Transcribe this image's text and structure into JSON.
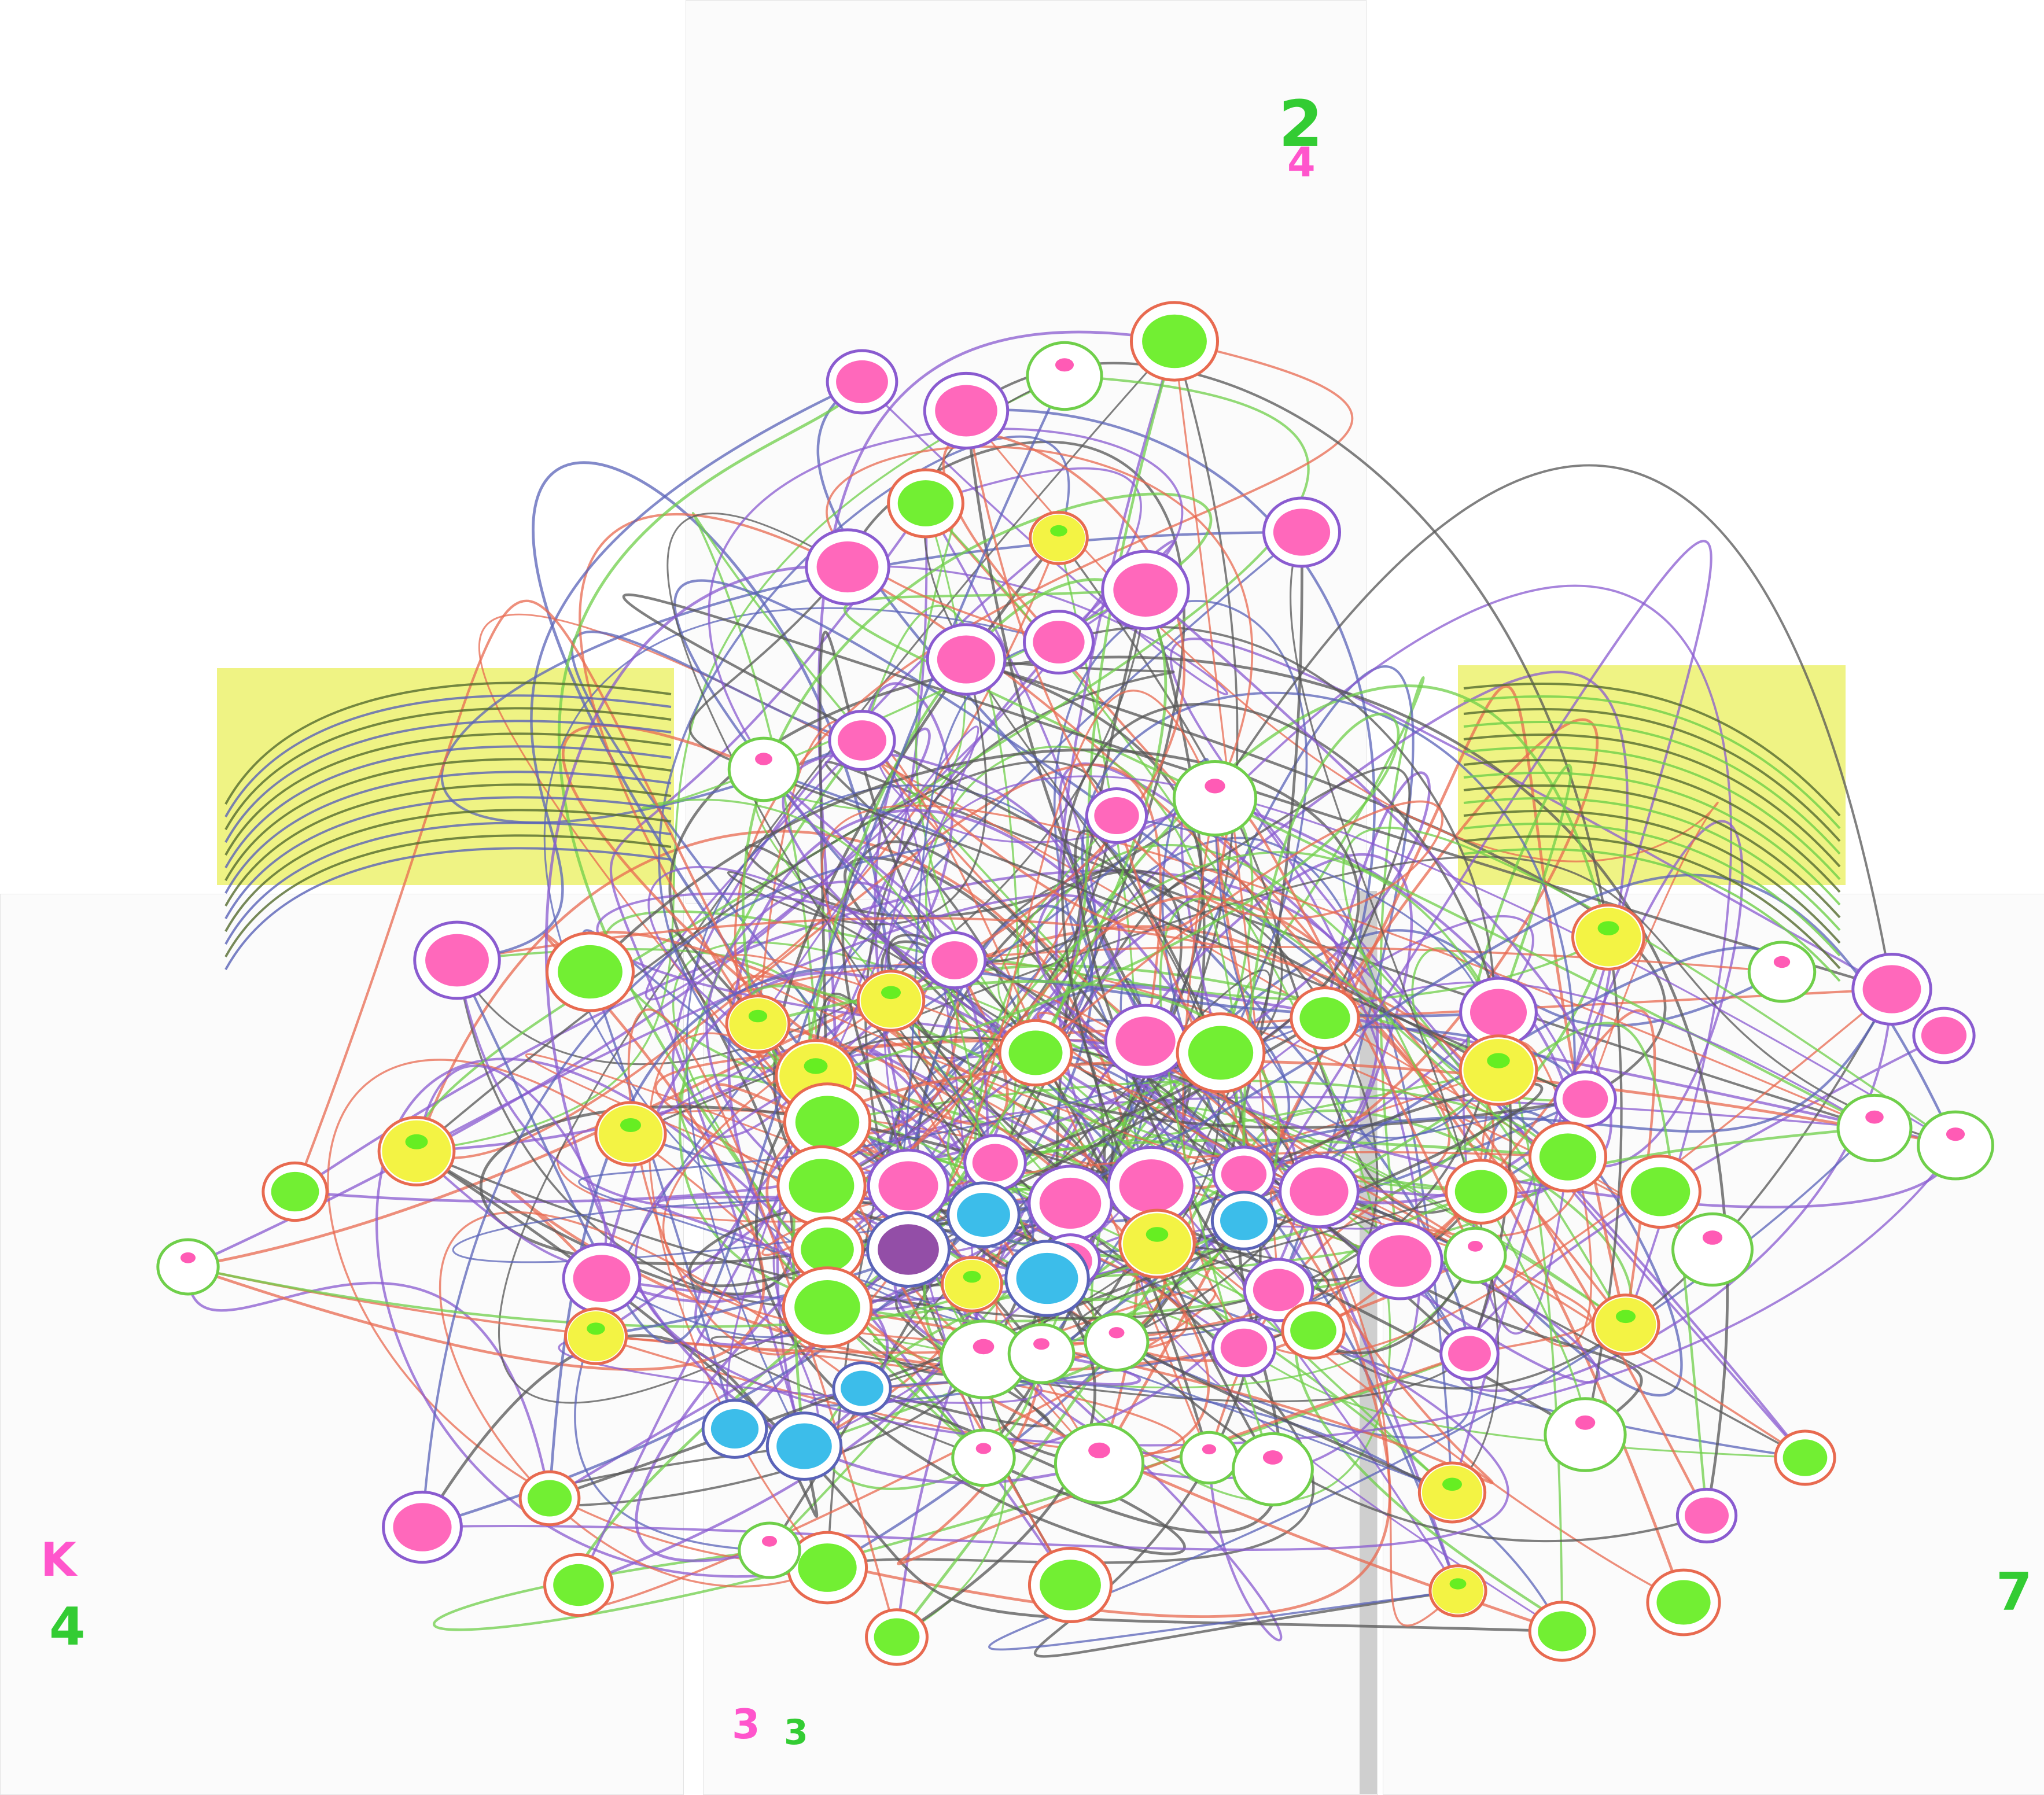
{
  "drawing": {
    "colors": {
      "paper": "#fbfbfb",
      "tape": "#eef27a",
      "green": "#66ee22",
      "pink": "#ff5bb5",
      "yellow": "#f2f23a",
      "cyan": "#2bb7e8",
      "purple": "#8a3fa0",
      "red_line": "#e86a50",
      "blue_line": "#5a63b8",
      "green_line": "#6fcf4a",
      "violet_line": "#8a5bd0"
    },
    "page_marks": [
      {
        "text": "2",
        "color": "#33cc33"
      },
      {
        "text": "4",
        "color": "#ff55cc"
      },
      {
        "text": "K",
        "color": "#ff55cc"
      },
      {
        "text": "4",
        "color": "#33cc33"
      },
      {
        "text": "3",
        "color": "#ff55cc"
      },
      {
        "text": "3",
        "color": "#33cc33"
      },
      {
        "text": "7",
        "color": "#33cc33"
      }
    ]
  }
}
